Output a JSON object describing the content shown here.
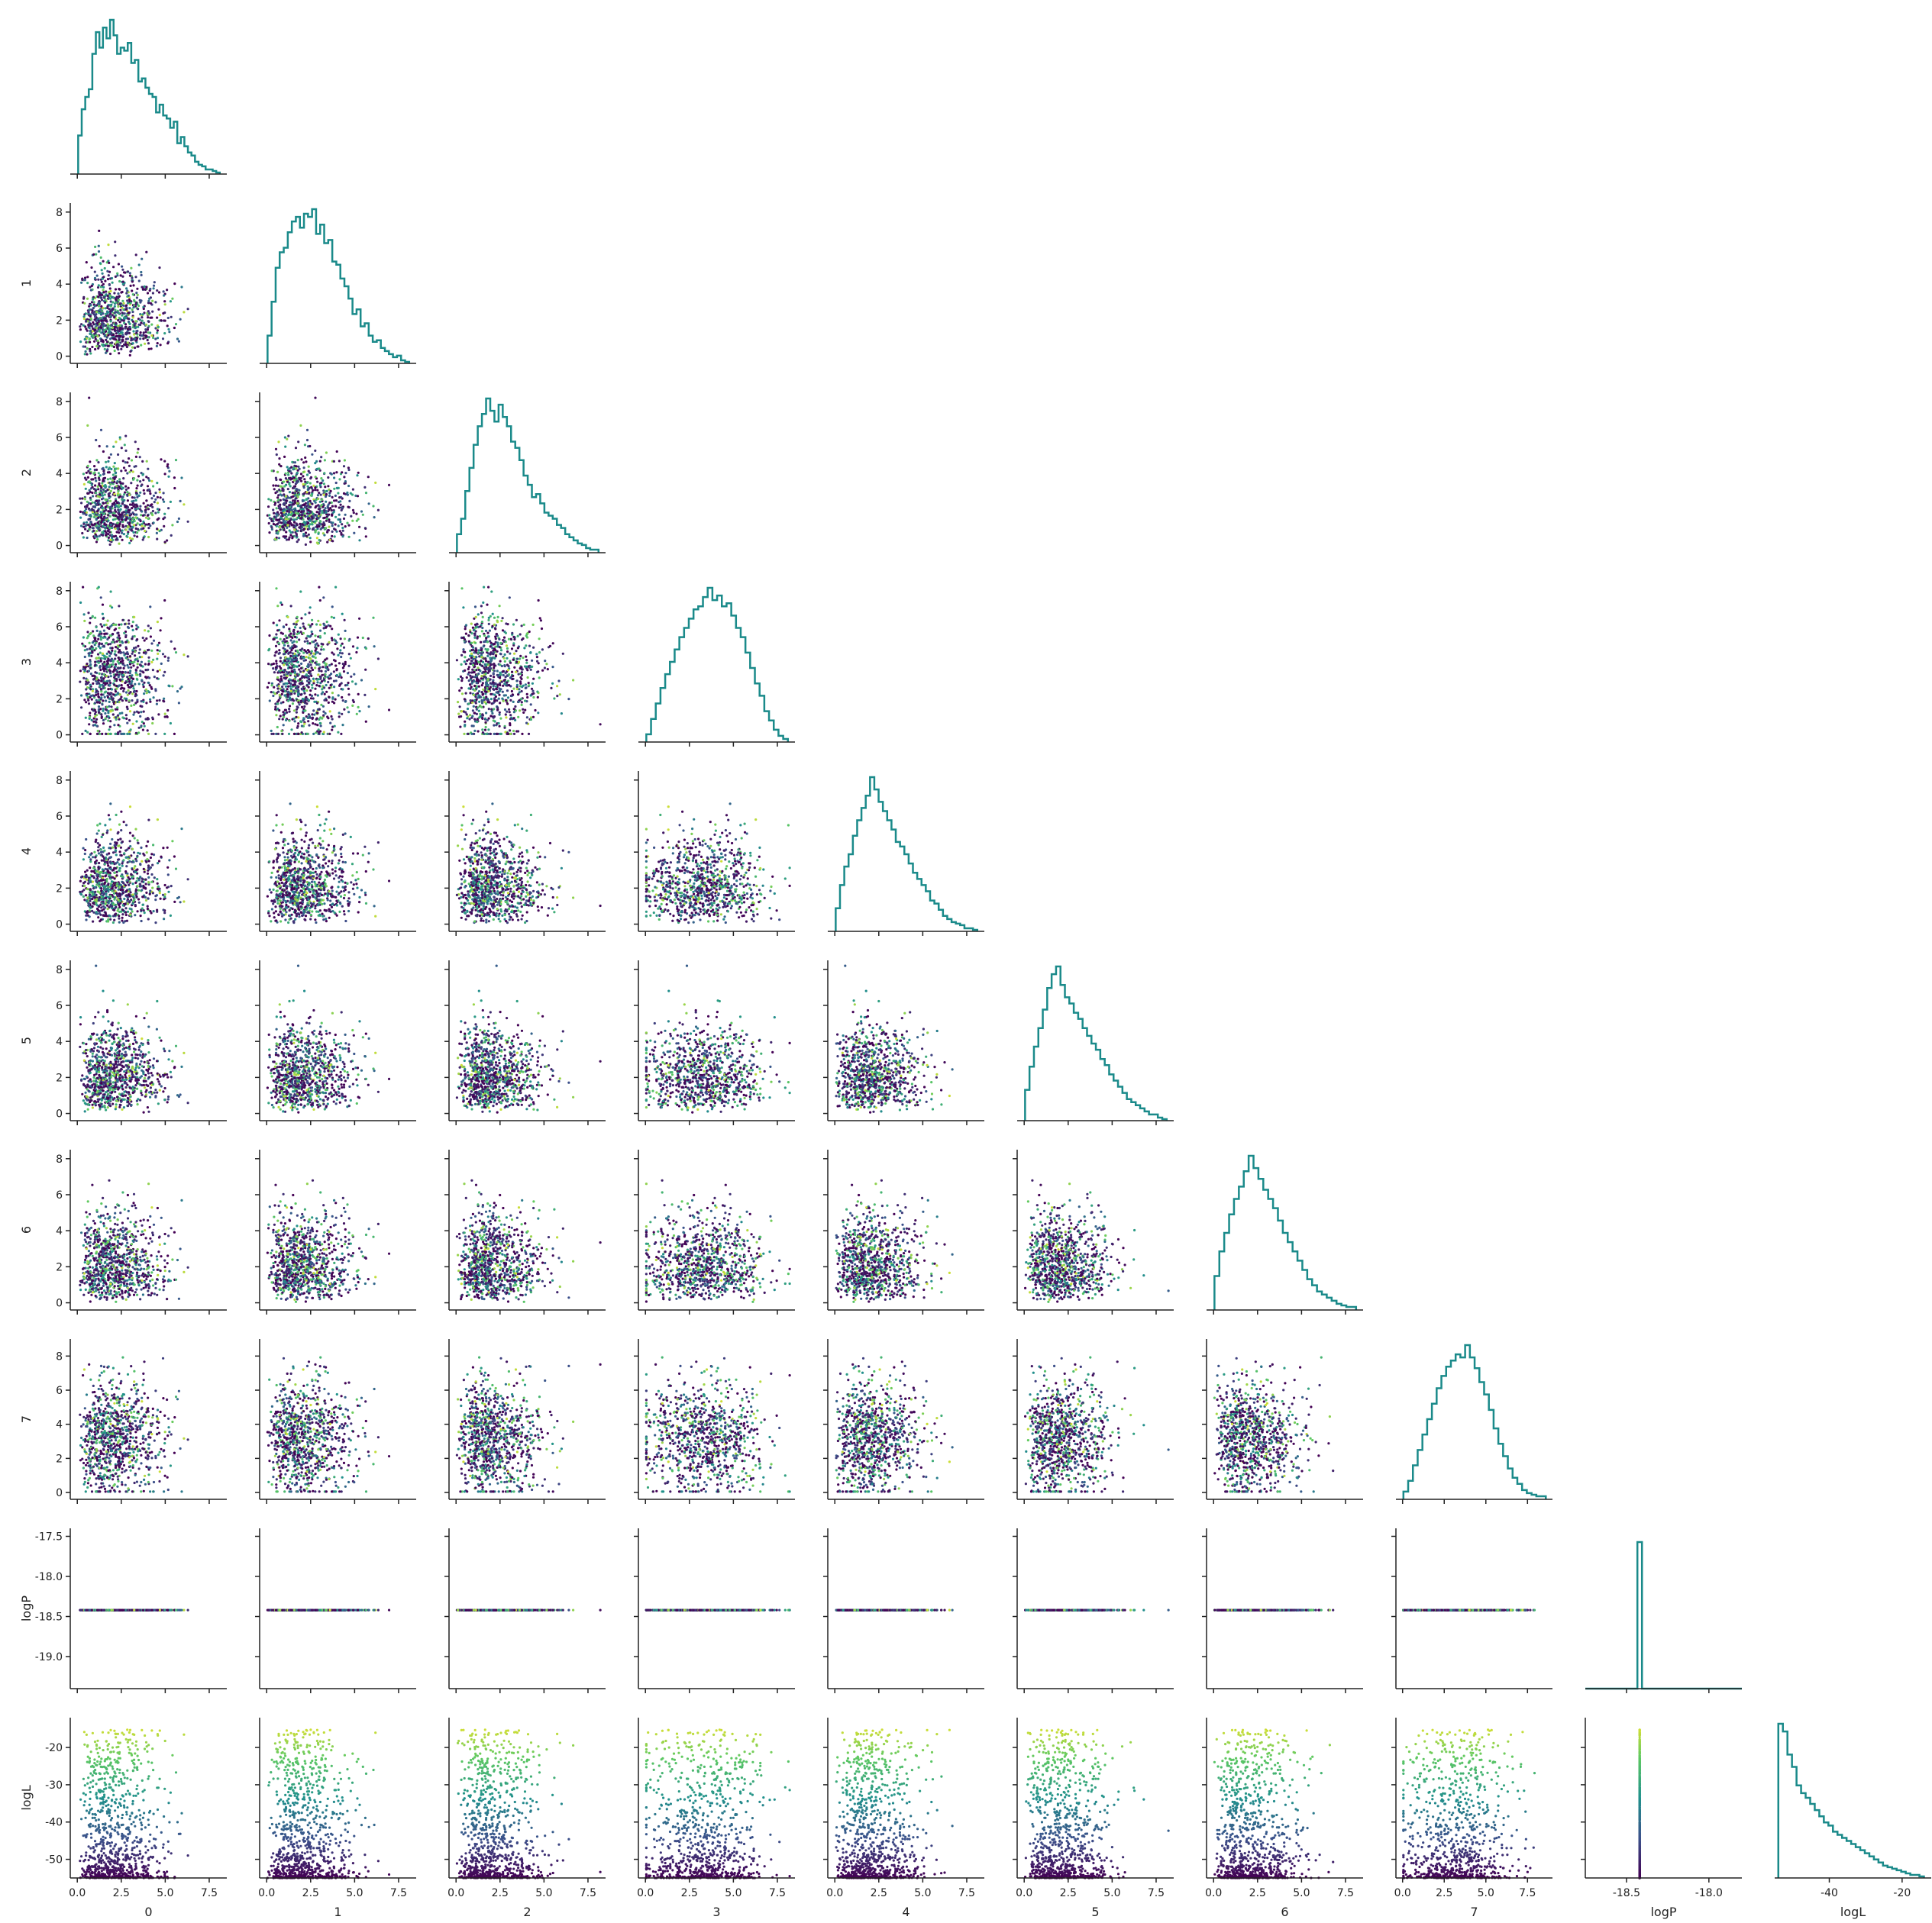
{
  "chart_data": {
    "type": "corner",
    "title": "",
    "variables": [
      "0",
      "1",
      "2",
      "3",
      "4",
      "5",
      "6",
      "7",
      "logP",
      "logL"
    ],
    "colormap": "viridis",
    "histogram_color": "#1a8a8a",
    "point_color_variable": "logL",
    "n_samples": 1500,
    "tick_labels": {
      "param_x": [
        "0.0",
        "2.5",
        "5.0",
        "7.5"
      ],
      "param_y": [
        "0",
        "2",
        "4",
        "6",
        "8"
      ],
      "param7_y": [
        "0",
        "2",
        "4",
        "6",
        "8"
      ],
      "logP_y": [
        "-17.5",
        "-18.0",
        "-18.5",
        "-19.0"
      ],
      "logP_x": [
        "-18.5",
        "-18.0"
      ],
      "logL_y": [
        "-20",
        "-30",
        "-40",
        "-50"
      ],
      "logL_x": [
        "-40",
        "-20"
      ]
    },
    "axes": {
      "param_range": [
        -0.4,
        8.5
      ],
      "param_range_7": [
        -0.4,
        9.0
      ],
      "logP_range": [
        -19.4,
        -17.4
      ],
      "logP_x_range": [
        -18.75,
        -17.8
      ],
      "logP_value": -18.42,
      "logL_range": [
        -55,
        -12
      ],
      "logL_x_range": [
        -55,
        -12
      ]
    },
    "histograms": {
      "0": [
        0.25,
        0.42,
        0.5,
        0.55,
        0.78,
        0.92,
        0.82,
        0.95,
        0.88,
        1.0,
        0.9,
        0.78,
        0.82,
        0.8,
        0.85,
        0.72,
        0.74,
        0.6,
        0.62,
        0.56,
        0.52,
        0.5,
        0.4,
        0.45,
        0.38,
        0.36,
        0.3,
        0.34,
        0.2,
        0.24,
        0.18,
        0.14,
        0.12,
        0.08,
        0.06,
        0.05,
        0.03,
        0.03,
        0.02,
        0.01
      ],
      "1": [
        0.18,
        0.4,
        0.62,
        0.72,
        0.75,
        0.85,
        0.92,
        0.95,
        0.88,
        0.97,
        0.95,
        1.0,
        0.84,
        0.9,
        0.78,
        0.8,
        0.66,
        0.64,
        0.55,
        0.5,
        0.42,
        0.32,
        0.35,
        0.24,
        0.26,
        0.18,
        0.14,
        0.15,
        0.1,
        0.08,
        0.06,
        0.04,
        0.05,
        0.02,
        0.01
      ],
      "2": [
        0.12,
        0.22,
        0.4,
        0.55,
        0.7,
        0.82,
        0.9,
        1.0,
        0.92,
        0.85,
        0.96,
        0.88,
        0.82,
        0.72,
        0.68,
        0.6,
        0.5,
        0.44,
        0.36,
        0.38,
        0.32,
        0.26,
        0.24,
        0.22,
        0.18,
        0.16,
        0.12,
        0.1,
        0.08,
        0.06,
        0.05,
        0.03,
        0.02,
        0.02
      ],
      "3": [
        0.05,
        0.15,
        0.25,
        0.35,
        0.44,
        0.52,
        0.6,
        0.68,
        0.74,
        0.8,
        0.86,
        0.88,
        0.94,
        1.0,
        0.92,
        0.95,
        0.88,
        0.9,
        0.82,
        0.74,
        0.68,
        0.58,
        0.48,
        0.38,
        0.3,
        0.2,
        0.14,
        0.08,
        0.04,
        0.02
      ],
      "4": [
        0.15,
        0.3,
        0.42,
        0.5,
        0.62,
        0.72,
        0.8,
        0.88,
        1.0,
        0.92,
        0.84,
        0.78,
        0.72,
        0.66,
        0.58,
        0.55,
        0.5,
        0.44,
        0.38,
        0.34,
        0.3,
        0.26,
        0.2,
        0.18,
        0.14,
        0.1,
        0.08,
        0.06,
        0.05,
        0.04,
        0.02,
        0.02,
        0.01
      ],
      "5": [
        0.2,
        0.35,
        0.48,
        0.6,
        0.72,
        0.86,
        0.95,
        1.0,
        0.88,
        0.8,
        0.76,
        0.7,
        0.66,
        0.6,
        0.55,
        0.5,
        0.46,
        0.4,
        0.36,
        0.3,
        0.26,
        0.22,
        0.18,
        0.14,
        0.12,
        0.1,
        0.08,
        0.06,
        0.04,
        0.04,
        0.02,
        0.01
      ],
      "6": [
        0.22,
        0.38,
        0.5,
        0.62,
        0.72,
        0.8,
        0.9,
        1.0,
        0.92,
        0.85,
        0.78,
        0.72,
        0.66,
        0.58,
        0.5,
        0.44,
        0.38,
        0.32,
        0.26,
        0.2,
        0.16,
        0.12,
        0.1,
        0.08,
        0.06,
        0.04,
        0.03,
        0.02,
        0.02
      ],
      "7": [
        0.05,
        0.12,
        0.22,
        0.32,
        0.42,
        0.52,
        0.62,
        0.72,
        0.8,
        0.86,
        0.9,
        0.94,
        0.92,
        1.0,
        0.92,
        0.85,
        0.76,
        0.68,
        0.58,
        0.46,
        0.36,
        0.28,
        0.2,
        0.14,
        0.1,
        0.06,
        0.04,
        0.03,
        0.02,
        0.02
      ],
      "logL": [
        1.0,
        0.95,
        0.8,
        0.72,
        0.6,
        0.55,
        0.52,
        0.48,
        0.44,
        0.4,
        0.36,
        0.34,
        0.3,
        0.28,
        0.26,
        0.24,
        0.22,
        0.2,
        0.18,
        0.16,
        0.14,
        0.12,
        0.1,
        0.08,
        0.07,
        0.06,
        0.05,
        0.04,
        0.03,
        0.02,
        0.02,
        0.01
      ]
    }
  }
}
